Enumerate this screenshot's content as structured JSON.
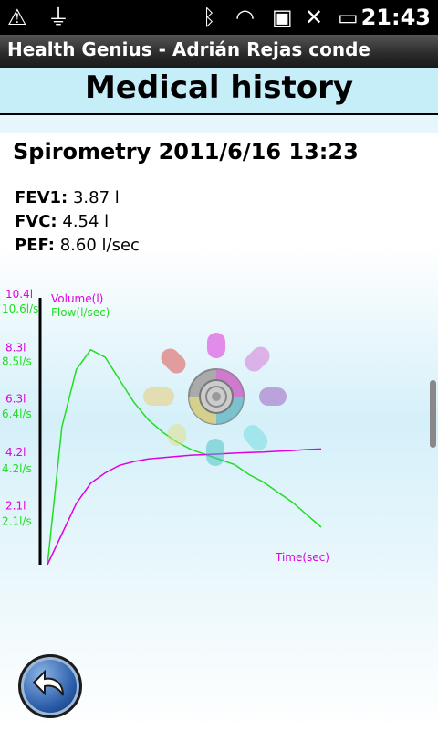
{
  "status_bar": {
    "time": "21:43",
    "icons": [
      "warning-icon",
      "usb-icon",
      "bluetooth-icon",
      "wifi-icon",
      "sd-card-icon",
      "no-signal-icon",
      "battery-icon"
    ]
  },
  "app_bar": {
    "title": "Health Genius - Adrián Rejas conde"
  },
  "header": {
    "title": "Medical history"
  },
  "test": {
    "title": "Spirometry 2011/6/16 13:23",
    "metrics": [
      {
        "label": "FEV1:",
        "value": "3.87 l"
      },
      {
        "label": "FVC:",
        "value": "4.54 l"
      },
      {
        "label": "PEF:",
        "value": "8.60 l/sec"
      }
    ]
  },
  "colors": {
    "volume": "#e000e0",
    "flow": "#22dd22",
    "header_bg": "#c6eef8"
  },
  "chart_data": {
    "type": "line",
    "series": [
      {
        "name": "Volume(l)",
        "units": "l"
      },
      {
        "name": "Flow(l/sec)",
        "units": "l/s"
      }
    ],
    "xlabel": "Time(sec)",
    "volume_ticks": [
      "2.1l",
      "4.2l",
      "6.3l",
      "8.3l",
      "10.4l"
    ],
    "flow_ticks": [
      "2.1l/s",
      "4.2l/s",
      "6.4l/s",
      "8.5l/s",
      "10.6l/s"
    ],
    "volume_tick_values": [
      2.1,
      4.2,
      6.3,
      8.3,
      10.4
    ],
    "flow_tick_values": [
      2.1,
      4.2,
      6.4,
      8.5,
      10.6
    ],
    "volume_values": [
      0,
      1.2,
      2.4,
      3.2,
      3.6,
      3.9,
      4.05,
      4.15,
      4.2,
      4.25,
      4.3,
      4.32,
      4.35,
      4.38,
      4.4,
      4.42,
      4.45,
      4.48,
      4.52,
      4.54
    ],
    "flow_values": [
      0,
      5.5,
      7.8,
      8.6,
      8.3,
      7.4,
      6.5,
      5.8,
      5.3,
      4.9,
      4.6,
      4.4,
      4.2,
      4.0,
      3.6,
      3.3,
      2.9,
      2.5,
      2.0,
      1.5
    ]
  }
}
